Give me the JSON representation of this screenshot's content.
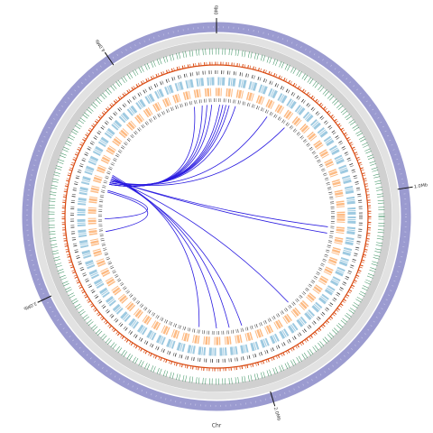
{
  "chart_data": {
    "type": "circos",
    "axis_label": "Chr",
    "xlim": [
      0,
      4.42
    ],
    "xticks": [
      {
        "value": 0,
        "label": "0Mb"
      },
      {
        "value": 1,
        "label": "1.0Mb"
      },
      {
        "value": 2,
        "label": "2.0Mb"
      },
      {
        "value": 3,
        "label": "3.0Mb"
      },
      {
        "value": 4,
        "label": "4.0Mb"
      }
    ],
    "link_color": "#2a1be0",
    "links": [
      {
        "source": 3.52,
        "target": 4.28
      },
      {
        "source": 3.52,
        "target": 4.33
      },
      {
        "source": 3.52,
        "target": 4.36
      },
      {
        "source": 3.52,
        "target": 4.39
      },
      {
        "source": 3.53,
        "target": 0.02
      },
      {
        "source": 3.53,
        "target": 0.04
      },
      {
        "source": 3.53,
        "target": 0.06
      },
      {
        "source": 3.53,
        "target": 0.08
      },
      {
        "source": 3.53,
        "target": 0.12
      },
      {
        "source": 3.54,
        "target": 0.33
      },
      {
        "source": 3.54,
        "target": 0.46
      },
      {
        "source": 3.55,
        "target": 1.17
      },
      {
        "source": 3.55,
        "target": 1.21
      },
      {
        "source": 3.56,
        "target": 1.72
      },
      {
        "source": 3.56,
        "target": 2.05
      },
      {
        "source": 3.57,
        "target": 2.13
      },
      {
        "source": 3.57,
        "target": 2.21
      },
      {
        "source": 3.58,
        "target": 2.32
      },
      {
        "source": 3.47,
        "target": 3.22
      },
      {
        "source": 3.48,
        "target": 3.3
      }
    ]
  }
}
